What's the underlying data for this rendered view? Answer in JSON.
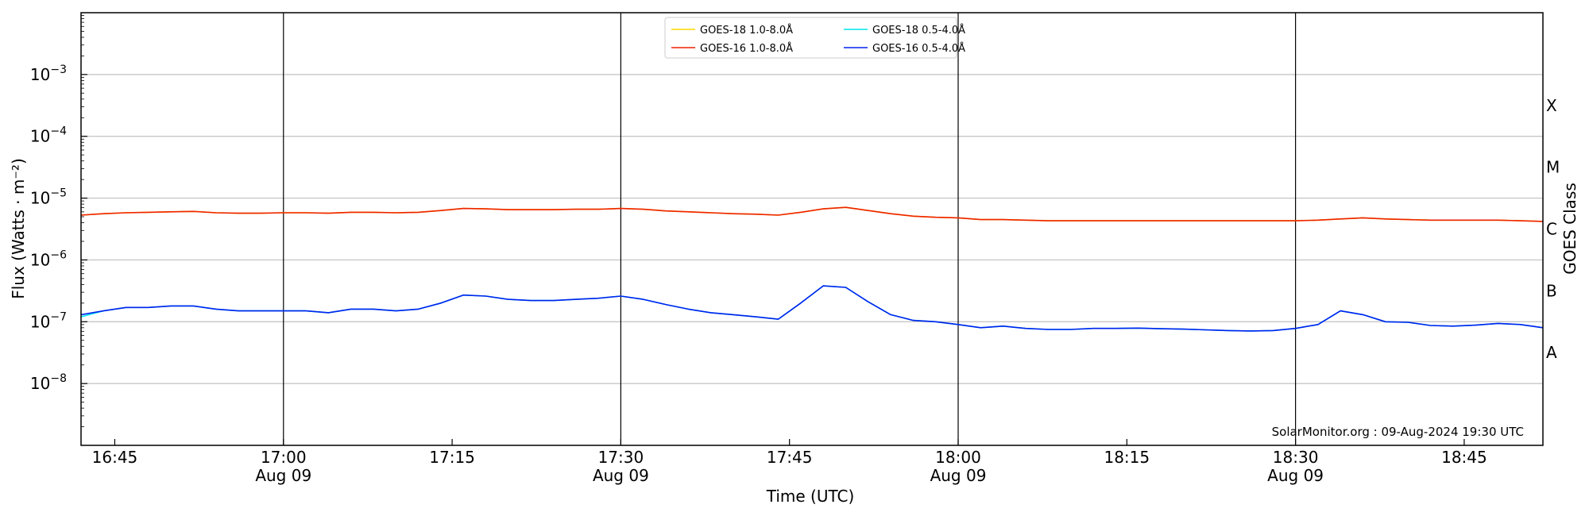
{
  "chart_data": {
    "type": "line",
    "xlabel": "Time (UTC)",
    "ylabel": "Flux (Watts · m⁻²)",
    "y2label": "GOES Class",
    "yscale": "log",
    "ylim": [
      1e-09,
      0.01
    ],
    "xlim": [
      "16:42",
      "18:52"
    ],
    "grid": true,
    "legend_placement": "top-center",
    "watermark": "SolarMonitor.org : 09-Aug-2024 19:30 UTC",
    "x_ticks": [
      {
        "t": "16:45",
        "label": "16:45",
        "date": ""
      },
      {
        "t": "17:00",
        "label": "17:00",
        "date": "Aug 09"
      },
      {
        "t": "17:15",
        "label": "17:15",
        "date": ""
      },
      {
        "t": "17:30",
        "label": "17:30",
        "date": "Aug 09"
      },
      {
        "t": "17:45",
        "label": "17:45",
        "date": ""
      },
      {
        "t": "18:00",
        "label": "18:00",
        "date": "Aug 09"
      },
      {
        "t": "18:15",
        "label": "18:15",
        "date": ""
      },
      {
        "t": "18:30",
        "label": "18:30",
        "date": "Aug 09"
      },
      {
        "t": "18:45",
        "label": "18:45",
        "date": ""
      }
    ],
    "vertical_lines": [
      "17:00",
      "17:30",
      "18:00",
      "18:30"
    ],
    "y_ticks": [
      {
        "value": 1e-08,
        "base": "10",
        "exp": "−8"
      },
      {
        "value": 1e-07,
        "base": "10",
        "exp": "−7"
      },
      {
        "value": 1e-06,
        "base": "10",
        "exp": "−6"
      },
      {
        "value": 1e-05,
        "base": "10",
        "exp": "−5"
      },
      {
        "value": 0.0001,
        "base": "10",
        "exp": "−4"
      },
      {
        "value": 0.001,
        "base": "10",
        "exp": "−3"
      }
    ],
    "goes_classes": [
      {
        "label": "A",
        "value": 3.16e-08
      },
      {
        "label": "B",
        "value": 3.16e-07
      },
      {
        "label": "C",
        "value": 3.16e-06
      },
      {
        "label": "M",
        "value": 3.16e-05
      },
      {
        "label": "X",
        "value": 0.000316
      }
    ],
    "legend": [
      {
        "name": "GOES-18 1.0-8.0Å",
        "color": "#ffd700"
      },
      {
        "name": "GOES-18 0.5-4.0Å",
        "color": "#00e5ee"
      },
      {
        "name": "GOES-16 1.0-8.0Å",
        "color": "#ee2200"
      },
      {
        "name": "GOES-16 0.5-4.0Å",
        "color": "#0022ee"
      }
    ],
    "series": [
      {
        "name": "GOES-18 1.0-8.0Å",
        "color": "#ffd700",
        "x": [
          "16:42",
          "16:44",
          "16:46",
          "16:48",
          "16:50",
          "16:52",
          "16:54",
          "16:56",
          "16:58",
          "17:00",
          "17:02",
          "17:04",
          "17:06",
          "17:08",
          "17:10",
          "17:12",
          "17:14",
          "17:16",
          "17:18",
          "17:20",
          "17:22",
          "17:24",
          "17:26",
          "17:28",
          "17:30",
          "17:32",
          "17:34",
          "17:36",
          "17:38",
          "17:40",
          "17:42",
          "17:44",
          "17:46",
          "17:48",
          "17:50",
          "17:52",
          "17:54",
          "17:56",
          "17:58",
          "18:00",
          "18:02",
          "18:04",
          "18:06",
          "18:08",
          "18:10",
          "18:12",
          "18:14",
          "18:16",
          "18:18",
          "18:20",
          "18:22",
          "18:24",
          "18:26",
          "18:28",
          "18:30",
          "18:32",
          "18:34",
          "18:36",
          "18:38",
          "18:40",
          "18:42",
          "18:44",
          "18:46",
          "18:48",
          "18:50",
          "18:52"
        ],
        "y": [
          5.3e-06,
          5.6e-06,
          5.8e-06,
          5.9e-06,
          6e-06,
          6.1e-06,
          5.8e-06,
          5.7e-06,
          5.7e-06,
          5.8e-06,
          5.8e-06,
          5.7e-06,
          5.9e-06,
          5.9e-06,
          5.8e-06,
          5.9e-06,
          6.3e-06,
          6.8e-06,
          6.7e-06,
          6.5e-06,
          6.5e-06,
          6.5e-06,
          6.6e-06,
          6.6e-06,
          6.8e-06,
          6.6e-06,
          6.2e-06,
          6e-06,
          5.8e-06,
          5.6e-06,
          5.5e-06,
          5.3e-06,
          5.9e-06,
          6.7e-06,
          7.1e-06,
          6.3e-06,
          5.6e-06,
          5.1e-06,
          4.9e-06,
          4.8e-06,
          4.5e-06,
          4.5e-06,
          4.4e-06,
          4.3e-06,
          4.3e-06,
          4.3e-06,
          4.3e-06,
          4.3e-06,
          4.3e-06,
          4.3e-06,
          4.3e-06,
          4.3e-06,
          4.3e-06,
          4.3e-06,
          4.3e-06,
          4.4e-06,
          4.6e-06,
          4.8e-06,
          4.6e-06,
          4.5e-06,
          4.4e-06,
          4.4e-06,
          4.4e-06,
          4.4e-06,
          4.3e-06,
          4.2e-06
        ]
      },
      {
        "name": "GOES-18 0.5-4.0Å",
        "color": "#00e5ee",
        "x": [
          "16:42",
          "16:44",
          "16:46",
          "16:48",
          "16:50",
          "16:52",
          "16:54",
          "16:56",
          "16:58",
          "17:00",
          "17:02",
          "17:04",
          "17:06",
          "17:08",
          "17:10",
          "17:12",
          "17:14",
          "17:16",
          "17:18",
          "17:20",
          "17:22",
          "17:24",
          "17:26",
          "17:28",
          "17:30",
          "17:32",
          "17:34",
          "17:36",
          "17:38",
          "17:40",
          "17:42",
          "17:44",
          "17:46",
          "17:48",
          "17:50",
          "17:52",
          "17:54",
          "17:56",
          "17:58",
          "18:00",
          "18:02",
          "18:04",
          "18:06",
          "18:08",
          "18:10",
          "18:12",
          "18:14",
          "18:16",
          "18:18",
          "18:20",
          "18:22",
          "18:24",
          "18:26",
          "18:28",
          "18:30",
          "18:32",
          "18:34",
          "18:36",
          "18:38",
          "18:40",
          "18:42",
          "18:44",
          "18:46",
          "18:48",
          "18:50",
          "18:52"
        ],
        "y": [
          1.2e-07,
          1.5e-07,
          1.7e-07,
          1.7e-07,
          1.8e-07,
          1.8e-07,
          1.6e-07,
          1.5e-07,
          1.5e-07,
          1.5e-07,
          1.5e-07,
          1.4e-07,
          1.6e-07,
          1.6e-07,
          1.5e-07,
          1.6e-07,
          2e-07,
          2.7e-07,
          2.6e-07,
          2.3e-07,
          2.2e-07,
          2.2e-07,
          2.3e-07,
          2.4e-07,
          2.6e-07,
          2.3e-07,
          1.9e-07,
          1.6e-07,
          1.4e-07,
          1.3e-07,
          1.2e-07,
          1.1e-07,
          2e-07,
          3.8e-07,
          3.6e-07,
          2.1e-07,
          1.3e-07,
          1.05e-07,
          1e-07,
          9e-08,
          8e-08,
          8.5e-08,
          7.8e-08,
          7.5e-08,
          7.5e-08,
          7.8e-08,
          7.8e-08,
          7.9e-08,
          7.7e-08,
          7.6e-08,
          7.4e-08,
          7.2e-08,
          7.1e-08,
          7.2e-08,
          7.8e-08,
          9e-08,
          1.5e-07,
          1.3e-07,
          1e-07,
          9.8e-08,
          8.7e-08,
          8.5e-08,
          8.8e-08,
          9.4e-08,
          9e-08,
          8e-08
        ]
      },
      {
        "name": "GOES-16 1.0-8.0Å",
        "color": "#ee2200",
        "x": [
          "16:42",
          "16:44",
          "16:46",
          "16:48",
          "16:50",
          "16:52",
          "16:54",
          "16:56",
          "16:58",
          "17:00",
          "17:02",
          "17:04",
          "17:06",
          "17:08",
          "17:10",
          "17:12",
          "17:14",
          "17:16",
          "17:18",
          "17:20",
          "17:22",
          "17:24",
          "17:26",
          "17:28",
          "17:30",
          "17:32",
          "17:34",
          "17:36",
          "17:38",
          "17:40",
          "17:42",
          "17:44",
          "17:46",
          "17:48",
          "17:50",
          "17:52",
          "17:54",
          "17:56",
          "17:58",
          "18:00",
          "18:02",
          "18:04",
          "18:06",
          "18:08",
          "18:10",
          "18:12",
          "18:14",
          "18:16",
          "18:18",
          "18:20",
          "18:22",
          "18:24",
          "18:26",
          "18:28",
          "18:30",
          "18:32",
          "18:34",
          "18:36",
          "18:38",
          "18:40",
          "18:42",
          "18:44",
          "18:46",
          "18:48",
          "18:50",
          "18:52"
        ],
        "y": [
          5.3e-06,
          5.6e-06,
          5.8e-06,
          5.9e-06,
          6e-06,
          6.1e-06,
          5.8e-06,
          5.7e-06,
          5.7e-06,
          5.8e-06,
          5.8e-06,
          5.7e-06,
          5.9e-06,
          5.9e-06,
          5.8e-06,
          5.9e-06,
          6.3e-06,
          6.8e-06,
          6.7e-06,
          6.5e-06,
          6.5e-06,
          6.5e-06,
          6.6e-06,
          6.6e-06,
          6.8e-06,
          6.6e-06,
          6.2e-06,
          6e-06,
          5.8e-06,
          5.6e-06,
          5.5e-06,
          5.3e-06,
          5.9e-06,
          6.7e-06,
          7.1e-06,
          6.3e-06,
          5.6e-06,
          5.1e-06,
          4.9e-06,
          4.8e-06,
          4.5e-06,
          4.5e-06,
          4.4e-06,
          4.3e-06,
          4.3e-06,
          4.3e-06,
          4.3e-06,
          4.3e-06,
          4.3e-06,
          4.3e-06,
          4.3e-06,
          4.3e-06,
          4.3e-06,
          4.3e-06,
          4.3e-06,
          4.4e-06,
          4.6e-06,
          4.8e-06,
          4.6e-06,
          4.5e-06,
          4.4e-06,
          4.4e-06,
          4.4e-06,
          4.4e-06,
          4.3e-06,
          4.2e-06
        ]
      },
      {
        "name": "GOES-16 0.5-4.0Å",
        "color": "#0022ee",
        "x": [
          "16:42",
          "16:44",
          "16:46",
          "16:48",
          "16:50",
          "16:52",
          "16:54",
          "16:56",
          "16:58",
          "17:00",
          "17:02",
          "17:04",
          "17:06",
          "17:08",
          "17:10",
          "17:12",
          "17:14",
          "17:16",
          "17:18",
          "17:20",
          "17:22",
          "17:24",
          "17:26",
          "17:28",
          "17:30",
          "17:32",
          "17:34",
          "17:36",
          "17:38",
          "17:40",
          "17:42",
          "17:44",
          "17:46",
          "17:48",
          "17:50",
          "17:52",
          "17:54",
          "17:56",
          "17:58",
          "18:00",
          "18:02",
          "18:04",
          "18:06",
          "18:08",
          "18:10",
          "18:12",
          "18:14",
          "18:16",
          "18:18",
          "18:20",
          "18:22",
          "18:24",
          "18:26",
          "18:28",
          "18:30",
          "18:32",
          "18:34",
          "18:36",
          "18:38",
          "18:40",
          "18:42",
          "18:44",
          "18:46",
          "18:48",
          "18:50",
          "18:52"
        ],
        "y": [
          1.3e-07,
          1.5e-07,
          1.7e-07,
          1.7e-07,
          1.8e-07,
          1.8e-07,
          1.6e-07,
          1.5e-07,
          1.5e-07,
          1.5e-07,
          1.5e-07,
          1.4e-07,
          1.6e-07,
          1.6e-07,
          1.5e-07,
          1.6e-07,
          2e-07,
          2.7e-07,
          2.6e-07,
          2.3e-07,
          2.2e-07,
          2.2e-07,
          2.3e-07,
          2.4e-07,
          2.6e-07,
          2.3e-07,
          1.9e-07,
          1.6e-07,
          1.4e-07,
          1.3e-07,
          1.2e-07,
          1.1e-07,
          2e-07,
          3.8e-07,
          3.6e-07,
          2.1e-07,
          1.3e-07,
          1.05e-07,
          1e-07,
          9e-08,
          8e-08,
          8.5e-08,
          7.8e-08,
          7.5e-08,
          7.5e-08,
          7.8e-08,
          7.8e-08,
          7.9e-08,
          7.7e-08,
          7.6e-08,
          7.4e-08,
          7.2e-08,
          7.1e-08,
          7.2e-08,
          7.8e-08,
          9e-08,
          1.5e-07,
          1.3e-07,
          1e-07,
          9.8e-08,
          8.7e-08,
          8.5e-08,
          8.8e-08,
          9.4e-08,
          9e-08,
          8e-08
        ]
      }
    ]
  }
}
